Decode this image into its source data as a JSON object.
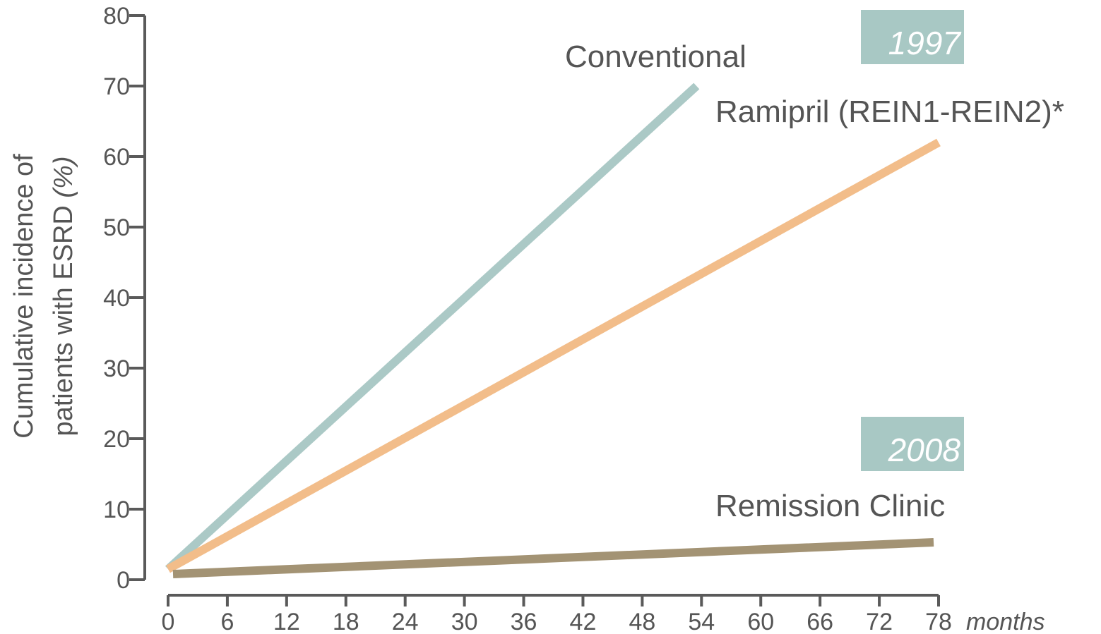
{
  "chart_data": {
    "type": "line",
    "ylabel_line1": "Cumulative incidence of",
    "ylabel_line2": "patients with ESRD ",
    "ylabel_unit": "(%)",
    "xlabel": "months",
    "xlim": [
      0,
      78
    ],
    "ylim": [
      0,
      80
    ],
    "xticks": [
      0,
      6,
      12,
      18,
      24,
      30,
      36,
      42,
      48,
      54,
      60,
      66,
      72,
      78
    ],
    "yticks": [
      0,
      10,
      20,
      30,
      40,
      50,
      60,
      70,
      80
    ],
    "grid": false,
    "series": [
      {
        "name": "Conventional",
        "color": "#abc9c6",
        "x": [
          0,
          53.5
        ],
        "y": [
          1.5,
          70
        ]
      },
      {
        "name": "Ramipril (REIN1-REIN2)*",
        "color": "#f2bd8a",
        "x": [
          0,
          78
        ],
        "y": [
          1.5,
          62
        ]
      },
      {
        "name": "Remission Clinic",
        "color": "#a39374",
        "x": [
          0.5,
          77.5
        ],
        "y": [
          0.8,
          5.3
        ]
      }
    ],
    "year_badges": [
      {
        "text": "1997",
        "color": "#a8c8c4"
      },
      {
        "text": "2008",
        "color": "#a8c8c4"
      }
    ]
  }
}
